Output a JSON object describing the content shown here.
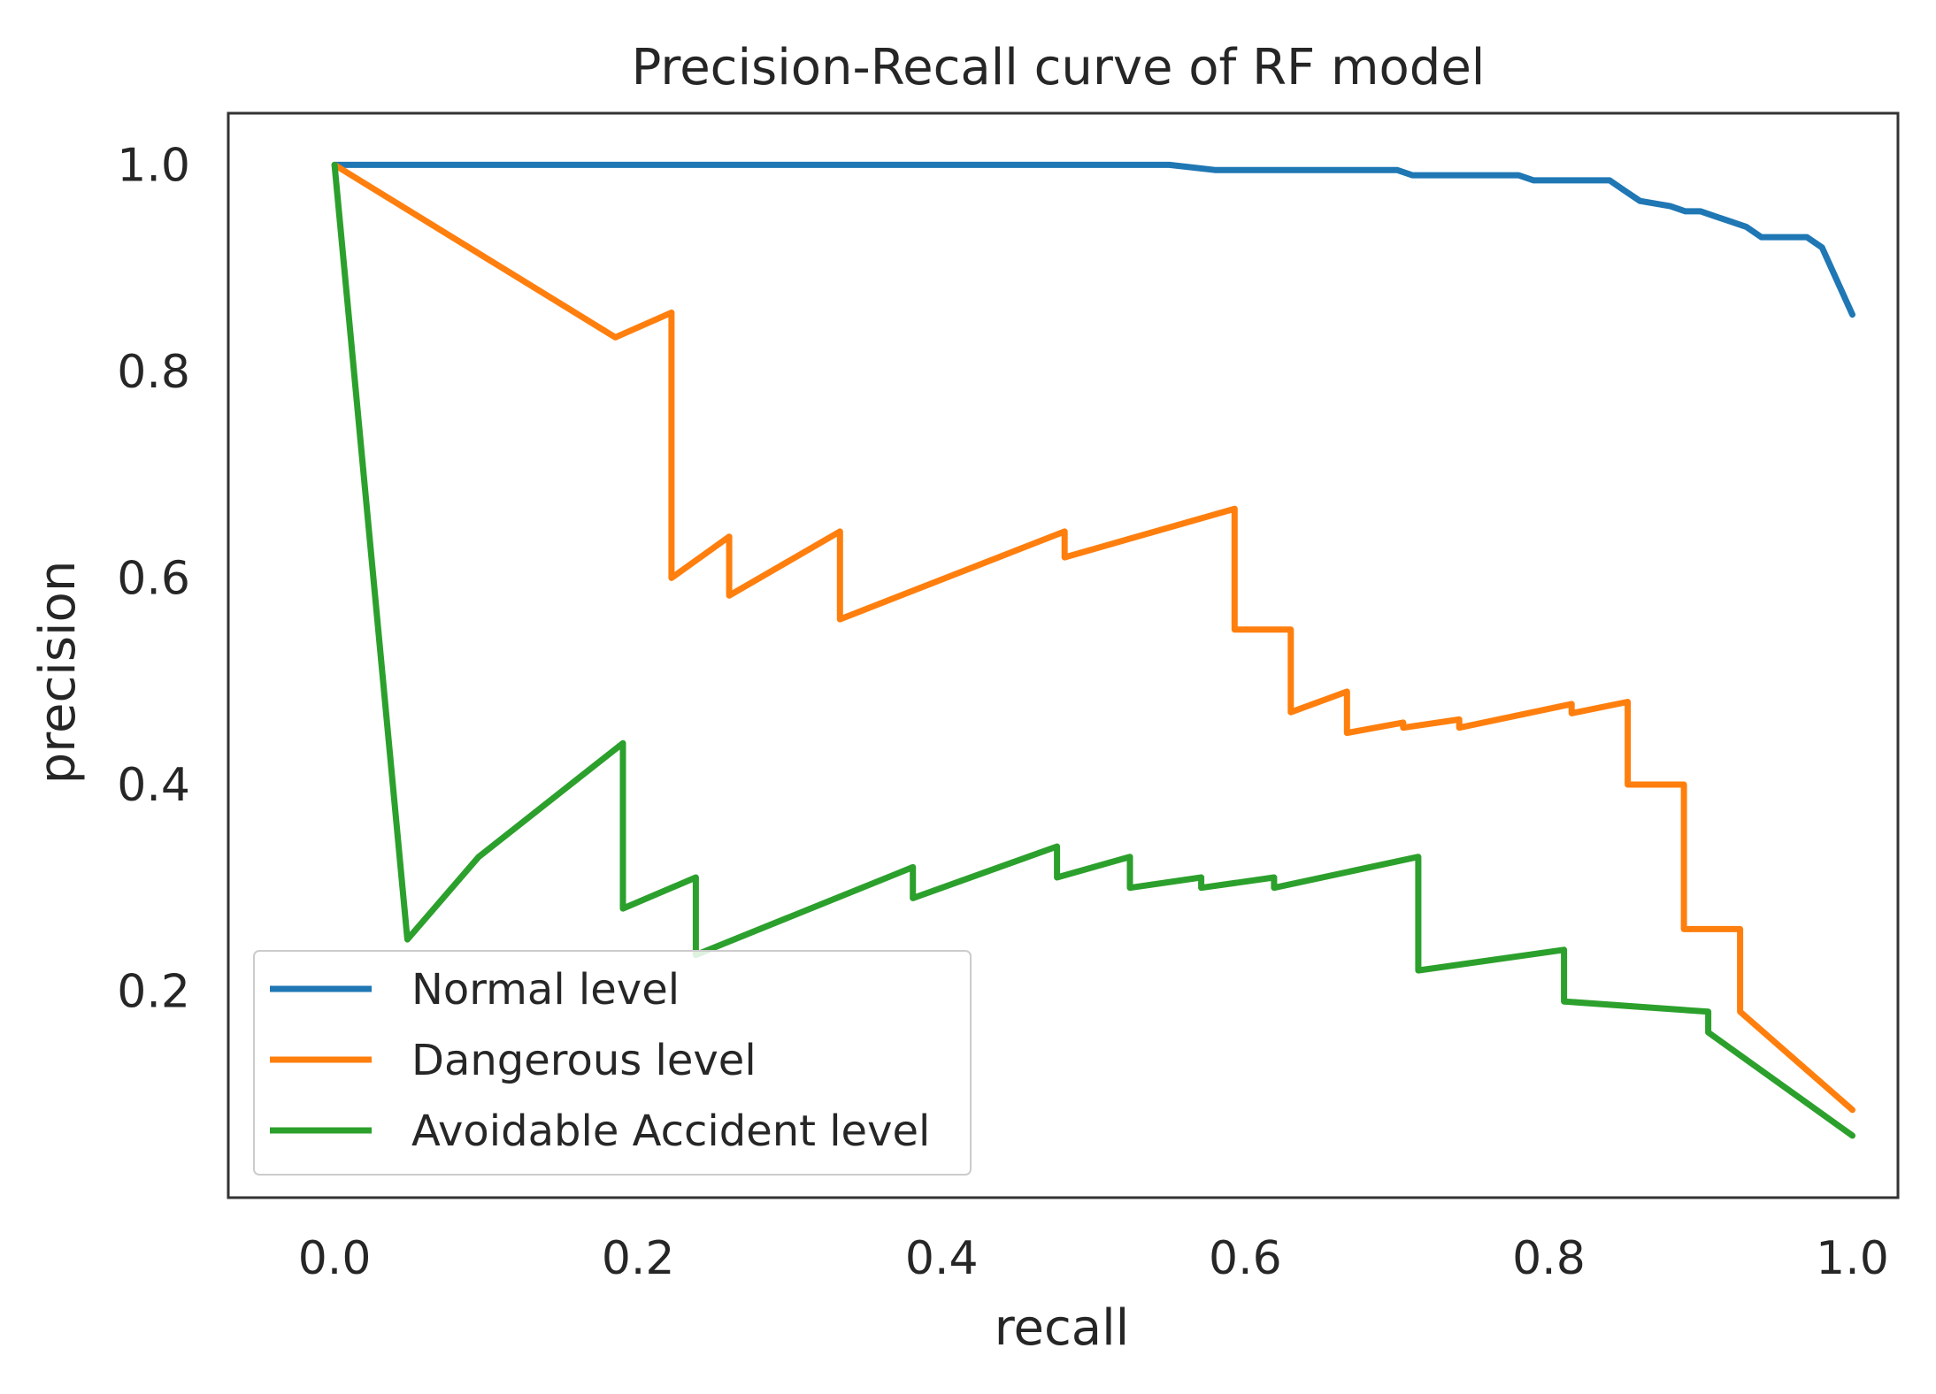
{
  "chart_data": {
    "type": "line",
    "title": "Precision-Recall curve of RF model",
    "xlabel": "recall",
    "ylabel": "precision",
    "xlim": [
      -0.07,
      1.03
    ],
    "ylim": [
      0.0,
      1.05
    ],
    "xticks": [
      "0.0",
      "0.2",
      "0.4",
      "0.6",
      "0.8",
      "1.0"
    ],
    "xtick_values": [
      0.0,
      0.2,
      0.4,
      0.6,
      0.8,
      1.0
    ],
    "yticks": [
      "0.2",
      "0.4",
      "0.6",
      "0.8",
      "1.0"
    ],
    "ytick_values": [
      0.2,
      0.4,
      0.6,
      0.8,
      1.0
    ],
    "grid": false,
    "legend_position": "lower-left",
    "series": [
      {
        "name": "Normal level",
        "color": "#1f77b4",
        "x": [
          0.0,
          0.55,
          0.58,
          0.7,
          0.71,
          0.78,
          0.79,
          0.84,
          0.85,
          0.86,
          0.88,
          0.89,
          0.9,
          0.91,
          0.92,
          0.93,
          0.94,
          0.955,
          0.97,
          0.98,
          1.0
        ],
        "y": [
          1.0,
          1.0,
          0.995,
          0.995,
          0.99,
          0.99,
          0.985,
          0.985,
          0.975,
          0.965,
          0.96,
          0.955,
          0.955,
          0.95,
          0.945,
          0.94,
          0.93,
          0.93,
          0.93,
          0.92,
          0.855
        ]
      },
      {
        "name": "Dangerous level",
        "color": "#ff7f0e",
        "x": [
          0.0,
          0.185,
          0.222,
          0.222,
          0.26,
          0.26,
          0.333,
          0.333,
          0.481,
          0.481,
          0.593,
          0.593,
          0.63,
          0.63,
          0.667,
          0.667,
          0.704,
          0.704,
          0.741,
          0.741,
          0.815,
          0.815,
          0.852,
          0.852,
          0.889,
          0.889,
          0.926,
          0.926,
          1.0
        ],
        "y": [
          1.0,
          0.833,
          0.857,
          0.6,
          0.64,
          0.583,
          0.645,
          0.56,
          0.645,
          0.62,
          0.667,
          0.55,
          0.55,
          0.47,
          0.49,
          0.45,
          0.46,
          0.455,
          0.463,
          0.455,
          0.478,
          0.469,
          0.48,
          0.4,
          0.4,
          0.26,
          0.26,
          0.18,
          0.085
        ]
      },
      {
        "name": "Avoidable Accident level",
        "color": "#2ca02c",
        "x": [
          0.0,
          0.048,
          0.095,
          0.19,
          0.19,
          0.238,
          0.238,
          0.381,
          0.381,
          0.476,
          0.476,
          0.524,
          0.524,
          0.571,
          0.571,
          0.619,
          0.619,
          0.714,
          0.714,
          0.81,
          0.81,
          0.905,
          0.905,
          1.0
        ],
        "y": [
          1.0,
          0.25,
          0.33,
          0.44,
          0.28,
          0.31,
          0.235,
          0.32,
          0.29,
          0.34,
          0.31,
          0.33,
          0.3,
          0.31,
          0.3,
          0.31,
          0.3,
          0.33,
          0.22,
          0.24,
          0.19,
          0.18,
          0.16,
          0.06
        ]
      }
    ]
  }
}
